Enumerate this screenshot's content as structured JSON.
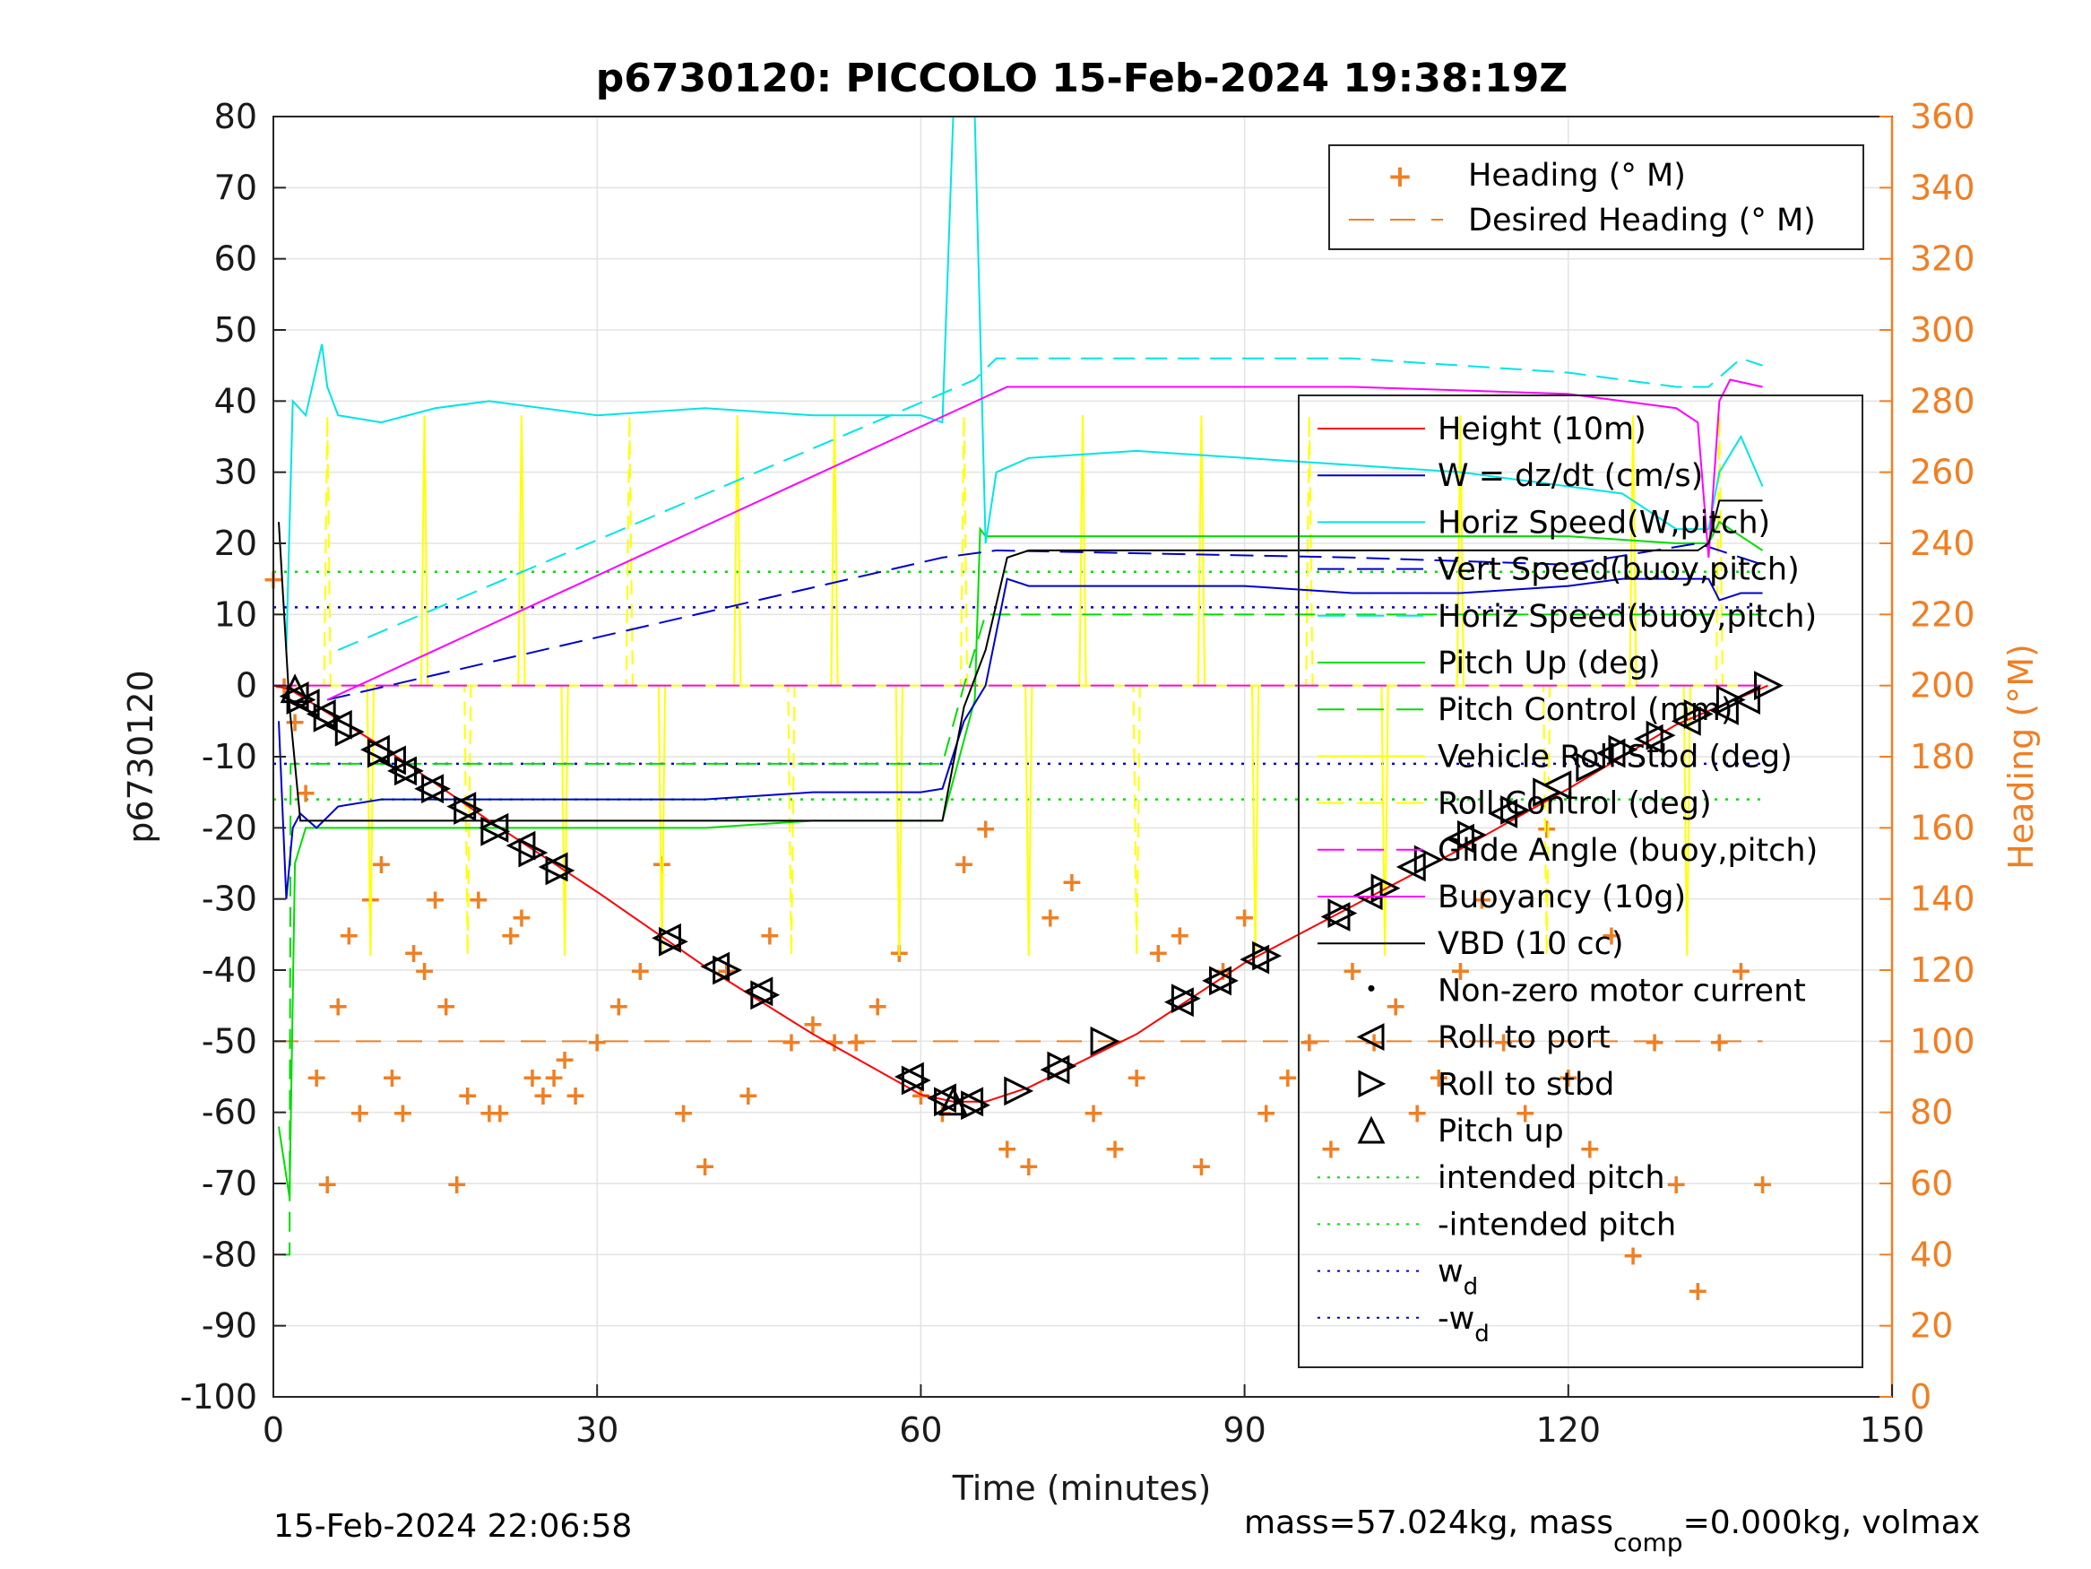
{
  "chart_data": {
    "type": "line",
    "title": "p6730120: PICCOLO 15-Feb-2024 19:38:19Z",
    "xlabel": "Time (minutes)",
    "ylabel": "p6730120",
    "ylabel_right": "Heading (°M)",
    "xlim": [
      0,
      150
    ],
    "ylim": [
      -100,
      80
    ],
    "ylim_right": [
      0,
      360
    ],
    "x_ticks": [
      0,
      30,
      60,
      90,
      120,
      150
    ],
    "y_ticks": [
      80,
      70,
      60,
      50,
      40,
      30,
      20,
      10,
      0,
      -10,
      -20,
      -30,
      -40,
      -50,
      -60,
      -70,
      -80,
      -90,
      -100
    ],
    "y_right_ticks": [
      360,
      340,
      320,
      300,
      280,
      260,
      240,
      220,
      200,
      180,
      160,
      140,
      120,
      100,
      80,
      60,
      40,
      20,
      0
    ],
    "grid": true,
    "legend_heading": [
      "Heading (° M)",
      "Desired Heading (° M)"
    ],
    "legend_main": [
      "Height (10m)",
      "W = dz/dt (cm/s)",
      "Horiz Speed(W,pitch)",
      "Vert Speed(buoy,pitch)",
      "Horiz Speed(buoy,pitch)",
      "Pitch Up (deg)",
      "Pitch Control (mm)",
      "Vehicle Roll Stbd (deg)",
      "Roll Control (deg)",
      "Glide Angle (buoy,pitch)",
      "Buoyancy (10g)",
      "VBD (10 cc)",
      "Non-zero motor current",
      "Roll to port",
      "Roll to stbd",
      "Pitch up",
      "intended pitch",
      "-intended pitch",
      "w",
      "-w"
    ],
    "legend_sub": "d",
    "footer_left": "15-Feb-2024 22:06:58",
    "footer_right_a": "mass=57.024kg, mass",
    "footer_right_sub": "comp",
    "footer_right_b": "=0.000kg, volmax",
    "colors": {
      "height": "#ff0000",
      "w": "#0000cc",
      "horiz": "#00e5e5",
      "pitch": "#00dd00",
      "roll": "#ffff00",
      "glide": "#ff00ff",
      "heading": "#f07f23",
      "vbd": "#000000"
    },
    "series": [
      {
        "name": "Height (10m)",
        "x": [
          0,
          1.5,
          10,
          20,
          30,
          40,
          50,
          60,
          63,
          66,
          70,
          80,
          90,
          100,
          110,
          120,
          130,
          138.5
        ],
        "values": [
          0,
          -0.5,
          -8.5,
          -19,
          -29,
          -39.5,
          -49,
          -57.5,
          -58.5,
          -58.5,
          -56.5,
          -49,
          -39,
          -31,
          -23,
          -14.5,
          -5.5,
          0
        ]
      },
      {
        "name": "W = dz/dt (cm/s)",
        "x": [
          0.5,
          1.2,
          1.8,
          2.5,
          4,
          6,
          10,
          20,
          30,
          40,
          50,
          60,
          62,
          64,
          66,
          68,
          70,
          80,
          90,
          100,
          110,
          120,
          125,
          130,
          133,
          134,
          136,
          138
        ],
        "values": [
          -5,
          -30,
          -20,
          -18,
          -20,
          -17,
          -16,
          -16,
          -16,
          -16,
          -15,
          -15,
          -14.5,
          -5,
          0,
          15,
          14,
          14,
          14,
          13,
          13,
          14,
          15,
          15,
          15,
          12,
          13,
          13
        ]
      },
      {
        "name": "Horiz Speed(W,pitch)",
        "x": [
          1.2,
          1.8,
          3,
          4.5,
          5,
          6,
          10,
          15,
          20,
          30,
          40,
          50,
          60,
          62,
          63,
          64,
          65,
          66,
          67,
          70,
          80,
          90,
          100,
          110,
          120,
          125,
          130,
          133,
          134,
          136,
          138
        ],
        "values": [
          5,
          40,
          38,
          48,
          42,
          38,
          37,
          39,
          40,
          38,
          39,
          38,
          38,
          37,
          80,
          80,
          80,
          20,
          30,
          32,
          33,
          32,
          31,
          30,
          28,
          27,
          22,
          22,
          30,
          35,
          28
        ]
      },
      {
        "name": "Vert Speed(buoy,pitch)",
        "x": [
          5,
          62,
          67,
          100,
          120,
          132,
          138
        ],
        "values": [
          -2,
          18,
          19,
          18,
          17,
          20,
          17
        ]
      },
      {
        "name": "Horiz Speed(buoy,pitch)",
        "x": [
          6,
          65,
          67,
          80,
          100,
          120,
          130,
          133,
          136,
          138
        ],
        "values": [
          5,
          43,
          46,
          46,
          46,
          44,
          42,
          42,
          46,
          45
        ]
      },
      {
        "name": "Pitch Up (deg)",
        "x": [
          0.5,
          1.5,
          2,
          3,
          10,
          20,
          30,
          40,
          50,
          60,
          62,
          65,
          65.5,
          66,
          70,
          80,
          90,
          100,
          110,
          120,
          130,
          133,
          134,
          136,
          138
        ],
        "values": [
          -62,
          -72,
          -25,
          -20,
          -20,
          -20,
          -20,
          -20,
          -19,
          -19,
          -19,
          -2,
          22,
          21,
          21,
          21,
          21,
          21,
          21,
          21,
          20,
          20,
          23,
          21,
          19
        ]
      },
      {
        "name": "Pitch Control (mm)",
        "x": [
          0.8,
          1.5,
          1.6,
          62,
          64,
          66,
          138
        ],
        "values": [
          -80,
          -80,
          -11,
          -11,
          0,
          10,
          10
        ]
      },
      {
        "name": "Glide Angle (buoy,pitch)",
        "x": [
          0,
          138
        ],
        "values": [
          0,
          0
        ]
      },
      {
        "name": "Buoyancy (10g)",
        "x": [
          5,
          68,
          100,
          120,
          130,
          132,
          133,
          134,
          135,
          138
        ],
        "values": [
          -2,
          42,
          42,
          41,
          39,
          37,
          18,
          40,
          43,
          42
        ]
      },
      {
        "name": "VBD (10 cc)",
        "x": [
          0.5,
          1.5,
          2.5,
          10,
          30,
          50,
          62,
          64,
          66,
          68,
          70,
          80,
          100,
          120,
          132,
          133,
          134,
          136,
          138
        ],
        "values": [
          23,
          -3,
          -19,
          -19,
          -19,
          -19,
          -19,
          -3,
          5,
          18,
          19,
          19,
          19,
          19,
          19,
          20,
          26,
          26,
          26
        ]
      },
      {
        "name": "Heading (° M)",
        "x": [
          0,
          1,
          2,
          3,
          4,
          5,
          6,
          7,
          8,
          9,
          10,
          11,
          12,
          13,
          14,
          15,
          16,
          17,
          18,
          19,
          20,
          21,
          22,
          23,
          24,
          25,
          26,
          27,
          28,
          30,
          32,
          34,
          36,
          38,
          40,
          42,
          44,
          46,
          48,
          50,
          52,
          54,
          56,
          58,
          60,
          62,
          64,
          66,
          68,
          70,
          72,
          74,
          76,
          78,
          80,
          82,
          84,
          86,
          88,
          90,
          92,
          94,
          96,
          98,
          100,
          102,
          104,
          106,
          108,
          110,
          112,
          114,
          116,
          118,
          120,
          122,
          124,
          126,
          128,
          130,
          132,
          134,
          136,
          138
        ],
        "values": [
          230,
          200,
          190,
          170,
          90,
          60,
          110,
          130,
          80,
          140,
          150,
          90,
          80,
          125,
          120,
          140,
          110,
          60,
          85,
          140,
          80,
          80,
          130,
          135,
          90,
          85,
          90,
          95,
          85,
          100,
          110,
          120,
          150,
          80,
          65,
          120,
          85,
          130,
          100,
          105,
          100,
          100,
          110,
          125,
          85,
          80,
          150,
          160,
          70,
          65,
          135,
          145,
          80,
          70,
          90,
          125,
          130,
          65,
          120,
          135,
          80,
          90,
          100,
          70,
          120,
          100,
          110,
          80,
          90,
          120,
          140,
          100,
          80,
          160,
          90,
          70,
          130,
          40,
          100,
          60,
          30,
          100,
          120,
          60
        ]
      },
      {
        "name": "Desired Heading (° M)",
        "x": [
          0,
          138
        ],
        "values": [
          100,
          100
        ]
      },
      {
        "name": "intended pitch",
        "x": [
          0,
          138
        ],
        "values": [
          16,
          16
        ]
      },
      {
        "name": "-intended pitch",
        "x": [
          0,
          138
        ],
        "values": [
          -16,
          -16
        ]
      },
      {
        "name": "w",
        "x": [
          0,
          138
        ],
        "values": [
          11,
          11
        ]
      },
      {
        "name": "-w",
        "x": [
          0,
          138
        ],
        "values": [
          -11,
          -11
        ]
      }
    ],
    "roll_port_markers": {
      "x": [
        2,
        3,
        4.5,
        6,
        9.5,
        11,
        12,
        14.5,
        17.5,
        20.5,
        23,
        26,
        36.5,
        41,
        45,
        59,
        62,
        64.5,
        72.5,
        84,
        87.5,
        91,
        98.5,
        101.5,
        105.5,
        110,
        114,
        119,
        124,
        127.5,
        131,
        134.5,
        136.5
      ],
      "y": [
        -1.5,
        -2.5,
        -4,
        -5.5,
        -9,
        -10.5,
        -12,
        -14.5,
        -17,
        -20,
        -22.5,
        -25.5,
        -35.5,
        -39.5,
        -43,
        -55,
        -58,
        -58.5,
        -54,
        -44.5,
        -41.5,
        -38.5,
        -32.5,
        -29.5,
        -25.5,
        -21.5,
        -18,
        -14,
        -9.5,
        -7.5,
        -5,
        -3.5,
        -2
      ]
    },
    "roll_stbd_markers": {
      "x": [
        2.5,
        5,
        7,
        10,
        12.5,
        15,
        18,
        20.5,
        24,
        26.5,
        37,
        42,
        45.5,
        59.5,
        62.5,
        65,
        69,
        73,
        77,
        84.5,
        88,
        92,
        99,
        103,
        107,
        111,
        115,
        118,
        122,
        125,
        128.5,
        132,
        135,
        138.5
      ],
      "y": [
        -2,
        -4.5,
        -6.5,
        -9.5,
        -12,
        -14.5,
        -17.5,
        -20.5,
        -23.5,
        -26,
        -36,
        -40,
        -43.5,
        -55.5,
        -58.5,
        -59,
        -57,
        -53.5,
        -50,
        -44,
        -41.5,
        -38,
        -32,
        -28.5,
        -24.5,
        -21,
        -17.5,
        -15,
        -11.5,
        -9,
        -7,
        -4,
        -2,
        0
      ]
    },
    "pitch_up_markers": {
      "x": [
        2,
        63
      ],
      "y": [
        -0.5,
        -58.5
      ]
    }
  }
}
